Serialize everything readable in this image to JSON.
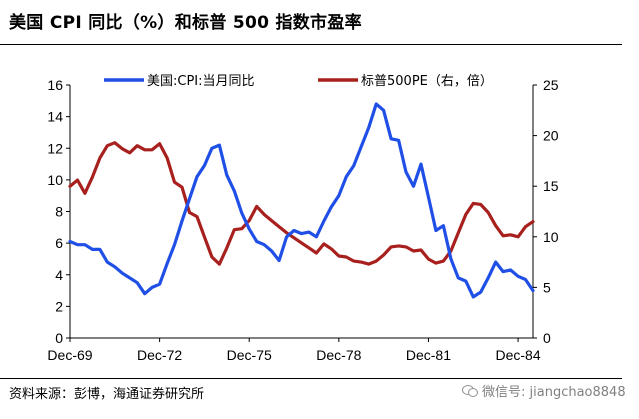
{
  "title": "美国 CPI 同比（%）和标普 500 指数市盈率",
  "source": "资料来源：彭博，海通证券研究所",
  "watermark": "微信号: jiangchao8848",
  "watermark_icon": "wechat-icon",
  "colors": {
    "cpi": "#1f4fe6",
    "pe": "#a8201d",
    "axis": "#000000"
  },
  "chart_data": {
    "type": "line",
    "x_start": "1969-12",
    "x_end": "1985-06",
    "x_ticks": [
      {
        "label": "Dec-69",
        "date": "1969-12"
      },
      {
        "label": "Dec-72",
        "date": "1972-12"
      },
      {
        "label": "Dec-75",
        "date": "1975-12"
      },
      {
        "label": "Dec-78",
        "date": "1978-12"
      },
      {
        "label": "Dec-81",
        "date": "1981-12"
      },
      {
        "label": "Dec-84",
        "date": "1984-12"
      }
    ],
    "y_left": {
      "min": 0,
      "max": 16,
      "ticks": [
        0,
        2,
        4,
        6,
        8,
        10,
        12,
        14,
        16
      ]
    },
    "y_right": {
      "min": 0,
      "max": 25,
      "ticks": [
        0,
        5,
        10,
        15,
        20,
        25
      ]
    },
    "legend_position": "top",
    "series": [
      {
        "name": "美国:CPI:当月同比",
        "axis": "left",
        "points": [
          [
            "1969-12",
            6.1
          ],
          [
            "1970-03",
            5.9
          ],
          [
            "1970-06",
            5.9
          ],
          [
            "1970-09",
            5.6
          ],
          [
            "1970-12",
            5.6
          ],
          [
            "1971-03",
            4.8
          ],
          [
            "1971-06",
            4.5
          ],
          [
            "1971-09",
            4.1
          ],
          [
            "1971-12",
            3.8
          ],
          [
            "1972-03",
            3.5
          ],
          [
            "1972-06",
            2.8
          ],
          [
            "1972-09",
            3.2
          ],
          [
            "1972-12",
            3.4
          ],
          [
            "1973-03",
            4.7
          ],
          [
            "1973-06",
            5.9
          ],
          [
            "1973-09",
            7.4
          ],
          [
            "1973-12",
            8.8
          ],
          [
            "1974-03",
            10.2
          ],
          [
            "1974-06",
            10.9
          ],
          [
            "1974-09",
            12.0
          ],
          [
            "1974-12",
            12.2
          ],
          [
            "1975-03",
            10.3
          ],
          [
            "1975-06",
            9.3
          ],
          [
            "1975-09",
            7.9
          ],
          [
            "1975-12",
            6.9
          ],
          [
            "1976-03",
            6.1
          ],
          [
            "1976-06",
            5.9
          ],
          [
            "1976-09",
            5.5
          ],
          [
            "1976-12",
            4.9
          ],
          [
            "1977-03",
            6.4
          ],
          [
            "1977-06",
            6.8
          ],
          [
            "1977-09",
            6.6
          ],
          [
            "1977-12",
            6.7
          ],
          [
            "1978-03",
            6.4
          ],
          [
            "1978-06",
            7.4
          ],
          [
            "1978-09",
            8.3
          ],
          [
            "1978-12",
            9.0
          ],
          [
            "1979-03",
            10.2
          ],
          [
            "1979-06",
            10.9
          ],
          [
            "1979-09",
            12.1
          ],
          [
            "1979-12",
            13.3
          ],
          [
            "1980-03",
            14.8
          ],
          [
            "1980-06",
            14.4
          ],
          [
            "1980-09",
            12.6
          ],
          [
            "1980-12",
            12.5
          ],
          [
            "1981-03",
            10.5
          ],
          [
            "1981-06",
            9.6
          ],
          [
            "1981-09",
            11.0
          ],
          [
            "1981-12",
            8.9
          ],
          [
            "1982-03",
            6.8
          ],
          [
            "1982-06",
            7.1
          ],
          [
            "1982-09",
            5.0
          ],
          [
            "1982-12",
            3.8
          ],
          [
            "1983-03",
            3.6
          ],
          [
            "1983-06",
            2.6
          ],
          [
            "1983-09",
            2.9
          ],
          [
            "1983-12",
            3.8
          ],
          [
            "1984-03",
            4.8
          ],
          [
            "1984-06",
            4.2
          ],
          [
            "1984-09",
            4.3
          ],
          [
            "1984-12",
            3.9
          ],
          [
            "1985-03",
            3.7
          ],
          [
            "1985-06",
            3.0
          ]
        ]
      },
      {
        "name": "标普500PE（右，倍）",
        "axis": "right",
        "points": [
          [
            "1969-12",
            15.0
          ],
          [
            "1970-03",
            15.6
          ],
          [
            "1970-06",
            14.3
          ],
          [
            "1970-09",
            15.9
          ],
          [
            "1970-12",
            17.8
          ],
          [
            "1971-03",
            19.0
          ],
          [
            "1971-06",
            19.3
          ],
          [
            "1971-09",
            18.7
          ],
          [
            "1971-12",
            18.3
          ],
          [
            "1972-03",
            19.0
          ],
          [
            "1972-06",
            18.6
          ],
          [
            "1972-09",
            18.6
          ],
          [
            "1972-12",
            19.2
          ],
          [
            "1973-03",
            17.8
          ],
          [
            "1973-06",
            15.4
          ],
          [
            "1973-09",
            14.9
          ],
          [
            "1973-12",
            12.4
          ],
          [
            "1974-03",
            12.0
          ],
          [
            "1974-06",
            10.0
          ],
          [
            "1974-09",
            8.0
          ],
          [
            "1974-12",
            7.3
          ],
          [
            "1975-03",
            8.9
          ],
          [
            "1975-06",
            10.7
          ],
          [
            "1975-09",
            10.8
          ],
          [
            "1975-12",
            11.6
          ],
          [
            "1976-03",
            13.0
          ],
          [
            "1976-06",
            12.2
          ],
          [
            "1976-09",
            11.6
          ],
          [
            "1976-12",
            11.0
          ],
          [
            "1977-03",
            10.4
          ],
          [
            "1977-06",
            9.9
          ],
          [
            "1977-09",
            9.4
          ],
          [
            "1977-12",
            8.9
          ],
          [
            "1978-03",
            8.4
          ],
          [
            "1978-06",
            9.3
          ],
          [
            "1978-09",
            8.8
          ],
          [
            "1978-12",
            8.1
          ],
          [
            "1979-03",
            8.0
          ],
          [
            "1979-06",
            7.6
          ],
          [
            "1979-09",
            7.5
          ],
          [
            "1979-12",
            7.3
          ],
          [
            "1980-03",
            7.6
          ],
          [
            "1980-06",
            8.2
          ],
          [
            "1980-09",
            9.0
          ],
          [
            "1980-12",
            9.1
          ],
          [
            "1981-03",
            9.0
          ],
          [
            "1981-06",
            8.6
          ],
          [
            "1981-09",
            8.7
          ],
          [
            "1981-12",
            7.8
          ],
          [
            "1982-03",
            7.4
          ],
          [
            "1982-06",
            7.6
          ],
          [
            "1982-09",
            8.6
          ],
          [
            "1982-12",
            10.4
          ],
          [
            "1983-03",
            12.2
          ],
          [
            "1983-06",
            13.3
          ],
          [
            "1983-09",
            13.2
          ],
          [
            "1983-12",
            12.4
          ],
          [
            "1984-03",
            11.1
          ],
          [
            "1984-06",
            10.1
          ],
          [
            "1984-09",
            10.2
          ],
          [
            "1984-12",
            10.0
          ],
          [
            "1985-03",
            11.0
          ],
          [
            "1985-06",
            11.5
          ]
        ]
      }
    ]
  }
}
